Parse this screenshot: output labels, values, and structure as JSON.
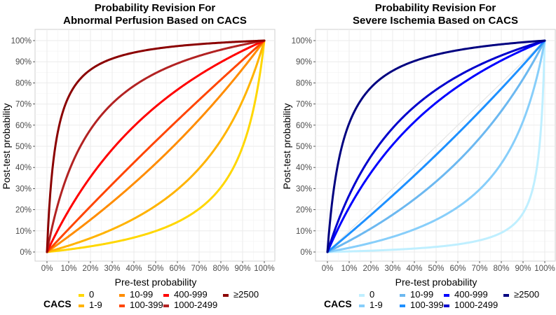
{
  "chart_data": [
    {
      "type": "line",
      "title": "Probability Revision For\nAbnormal Perfusion Based on CACS",
      "title_lines": [
        "Probability Revision For",
        "Abnormal Perfusion Based on CACS"
      ],
      "xlabel": "Pre-test probability",
      "ylabel": "Post-test probability",
      "xlim": [
        0,
        100
      ],
      "ylim": [
        0,
        100
      ],
      "x_ticks": [
        "0%",
        "10%",
        "20%",
        "30%",
        "40%",
        "50%",
        "60%",
        "70%",
        "80%",
        "90%",
        "100%"
      ],
      "y_ticks": [
        "0%",
        "10%",
        "20%",
        "30%",
        "40%",
        "50%",
        "60%",
        "70%",
        "80%",
        "90%",
        "100%"
      ],
      "grid": true,
      "legend_title": "CACS",
      "legend_position": "bottom",
      "reference_line": false,
      "series": [
        {
          "name": "0",
          "likelihood_ratio": 0.11,
          "color": "#FFD700"
        },
        {
          "name": "1-9",
          "likelihood_ratio": 0.28,
          "color": "#FFB300"
        },
        {
          "name": "10-99",
          "likelihood_ratio": 0.72,
          "color": "#FF8C00"
        },
        {
          "name": "100-399",
          "likelihood_ratio": 1.1,
          "color": "#FF4500"
        },
        {
          "name": "400-999",
          "likelihood_ratio": 2.2,
          "color": "#FF0000"
        },
        {
          "name": "1000-2499",
          "likelihood_ratio": 5.5,
          "color": "#B22222"
        },
        {
          "name": "≥2500",
          "likelihood_ratio": 25,
          "color": "#8B0000"
        }
      ]
    },
    {
      "type": "line",
      "title": "Probability Revision For\nSevere Ischemia Based on CACS",
      "title_lines": [
        "Probability Revision For",
        "Severe Ischemia Based on CACS"
      ],
      "xlabel": "Pre-test probability",
      "ylabel": "Post-test probability",
      "xlim": [
        0,
        100
      ],
      "ylim": [
        0,
        100
      ],
      "x_ticks": [
        "0%",
        "10%",
        "20%",
        "30%",
        "40%",
        "50%",
        "60%",
        "70%",
        "80%",
        "90%",
        "100%"
      ],
      "y_ticks": [
        "0%",
        "10%",
        "20%",
        "30%",
        "40%",
        "50%",
        "60%",
        "70%",
        "80%",
        "90%",
        "100%"
      ],
      "grid": true,
      "legend_title": "CACS",
      "legend_position": "bottom",
      "reference_line": true,
      "series": [
        {
          "name": "0",
          "likelihood_ratio": 0.025,
          "color": "#BFEFFF"
        },
        {
          "name": "1-9",
          "likelihood_ratio": 0.18,
          "color": "#87CEFA"
        },
        {
          "name": "10-99",
          "likelihood_ratio": 0.5,
          "color": "#6CB8F0"
        },
        {
          "name": "100-399",
          "likelihood_ratio": 0.85,
          "color": "#1E90FF"
        },
        {
          "name": "400-999",
          "likelihood_ratio": 2.4,
          "color": "#0000FF"
        },
        {
          "name": "1000-2499",
          "likelihood_ratio": 3.3,
          "color": "#0000CD"
        },
        {
          "name": "≥2500",
          "likelihood_ratio": 14,
          "color": "#000080"
        }
      ]
    }
  ]
}
